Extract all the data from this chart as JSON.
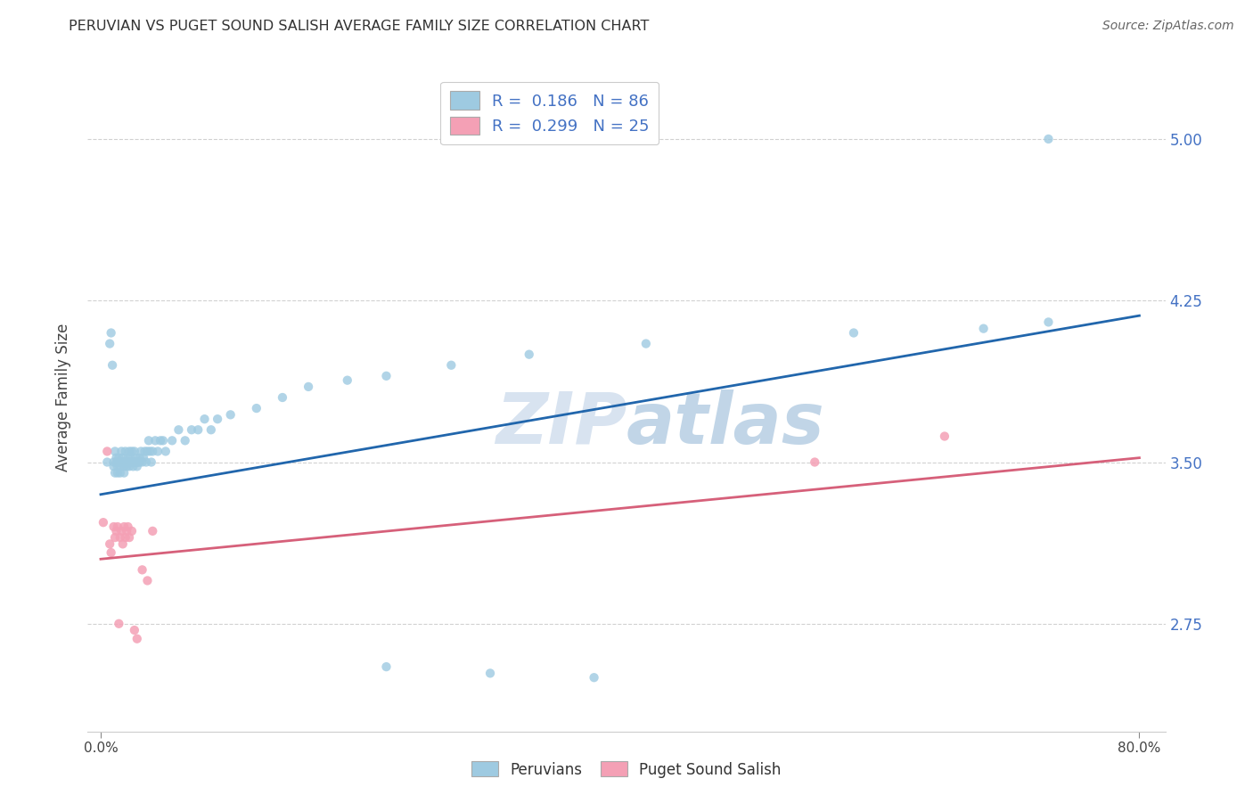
{
  "title": "PERUVIAN VS PUGET SOUND SALISH AVERAGE FAMILY SIZE CORRELATION CHART",
  "source": "Source: ZipAtlas.com",
  "ylabel": "Average Family Size",
  "xlim_min": -0.01,
  "xlim_max": 0.82,
  "ylim_min": 2.25,
  "ylim_max": 5.35,
  "xtick_positions": [
    0.0,
    0.8
  ],
  "xtick_labels": [
    "0.0%",
    "80.0%"
  ],
  "ytick_values": [
    2.75,
    3.5,
    4.25,
    5.0
  ],
  "ytick_labels": [
    "2.75",
    "3.50",
    "4.25",
    "5.00"
  ],
  "right_axis_color": "#4472c4",
  "blue_scatter_color": "#9ecae1",
  "pink_scatter_color": "#f4a0b5",
  "blue_line_color": "#2166ac",
  "pink_line_color": "#d6607a",
  "grid_color": "#cccccc",
  "watermark_color": "#ccd9ee",
  "watermark_alpha": 0.6,
  "legend_r1_label": "R =  0.186   N = 86",
  "legend_r2_label": "R =  0.299   N = 25",
  "bottom_legend_label1": "Peruvians",
  "bottom_legend_label2": "Puget Sound Salish",
  "blue_trend_x0": 0.0,
  "blue_trend_y0": 3.35,
  "blue_trend_x1": 0.8,
  "blue_trend_y1": 4.18,
  "pink_trend_x0": 0.0,
  "pink_trend_y0": 3.05,
  "pink_trend_x1": 0.8,
  "pink_trend_y1": 3.52,
  "peru_x": [
    0.005,
    0.007,
    0.008,
    0.009,
    0.01,
    0.01,
    0.011,
    0.011,
    0.012,
    0.012,
    0.013,
    0.013,
    0.014,
    0.014,
    0.015,
    0.015,
    0.015,
    0.016,
    0.016,
    0.017,
    0.017,
    0.018,
    0.018,
    0.018,
    0.019,
    0.019,
    0.02,
    0.02,
    0.021,
    0.021,
    0.022,
    0.022,
    0.023,
    0.023,
    0.024,
    0.024,
    0.025,
    0.025,
    0.026,
    0.026,
    0.027,
    0.027,
    0.028,
    0.028,
    0.029,
    0.03,
    0.03,
    0.031,
    0.032,
    0.033,
    0.034,
    0.035,
    0.036,
    0.037,
    0.038,
    0.039,
    0.04,
    0.042,
    0.044,
    0.046,
    0.048,
    0.05,
    0.055,
    0.06,
    0.065,
    0.07,
    0.075,
    0.08,
    0.085,
    0.09,
    0.1,
    0.12,
    0.14,
    0.16,
    0.19,
    0.22,
    0.27,
    0.33,
    0.42,
    0.58,
    0.68,
    0.73,
    0.22,
    0.3,
    0.38,
    0.73
  ],
  "peru_y": [
    3.5,
    4.05,
    4.1,
    3.95,
    3.5,
    3.48,
    3.55,
    3.45,
    3.5,
    3.52,
    3.48,
    3.45,
    3.5,
    3.52,
    3.5,
    3.48,
    3.45,
    3.5,
    3.55,
    3.5,
    3.52,
    3.5,
    3.48,
    3.45,
    3.5,
    3.55,
    3.5,
    3.48,
    3.5,
    3.52,
    3.55,
    3.48,
    3.5,
    3.52,
    3.5,
    3.55,
    3.5,
    3.48,
    3.5,
    3.55,
    3.5,
    3.52,
    3.5,
    3.48,
    3.5,
    3.5,
    3.52,
    3.55,
    3.5,
    3.52,
    3.55,
    3.5,
    3.55,
    3.6,
    3.55,
    3.5,
    3.55,
    3.6,
    3.55,
    3.6,
    3.6,
    3.55,
    3.6,
    3.65,
    3.6,
    3.65,
    3.65,
    3.7,
    3.65,
    3.7,
    3.72,
    3.75,
    3.8,
    3.85,
    3.88,
    3.9,
    3.95,
    4.0,
    4.05,
    4.1,
    4.12,
    4.15,
    2.55,
    2.52,
    2.5,
    5.0
  ],
  "salish_x": [
    0.002,
    0.005,
    0.007,
    0.008,
    0.01,
    0.011,
    0.012,
    0.013,
    0.014,
    0.015,
    0.016,
    0.017,
    0.018,
    0.019,
    0.02,
    0.021,
    0.022,
    0.024,
    0.026,
    0.028,
    0.032,
    0.036,
    0.04,
    0.55,
    0.65
  ],
  "salish_y": [
    3.22,
    3.55,
    3.12,
    3.08,
    3.2,
    3.15,
    3.18,
    3.2,
    2.75,
    3.15,
    3.18,
    3.12,
    3.2,
    3.15,
    3.18,
    3.2,
    3.15,
    3.18,
    2.72,
    2.68,
    3.0,
    2.95,
    3.18,
    3.5,
    3.62
  ]
}
